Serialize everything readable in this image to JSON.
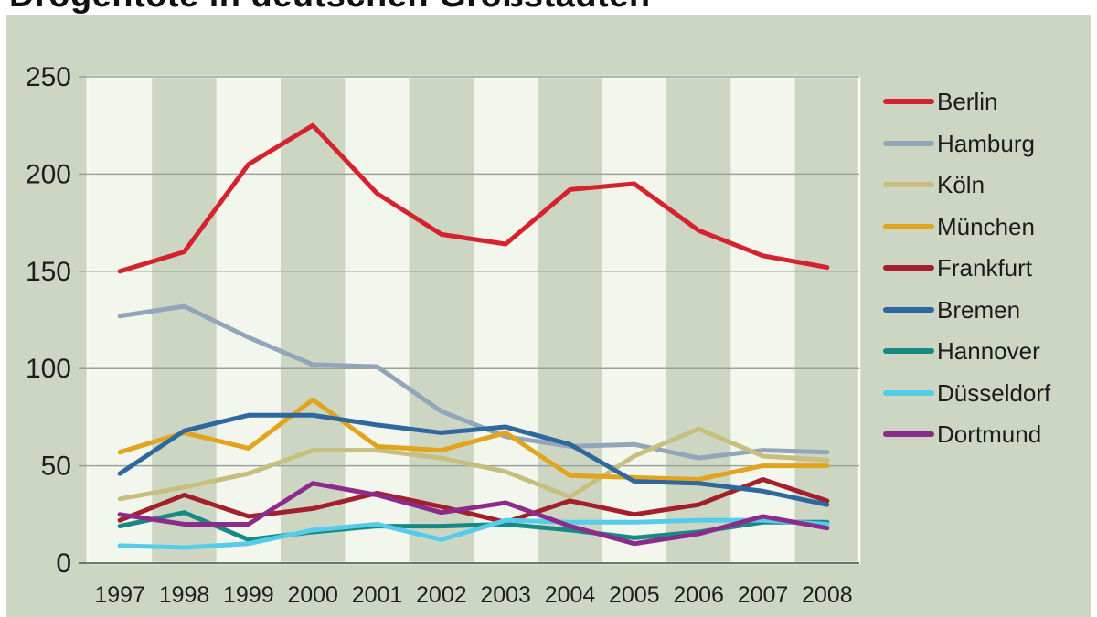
{
  "title": "Drogentote in deutschen Großstädten",
  "colors": {
    "page_bg": "#ffffff",
    "chart_bg": "#ccd6c3",
    "band_light": "#f3f6ed",
    "band_dark": "#ccd6c3",
    "plot_border": "#fafcf5",
    "grid": "#9aa29a",
    "axis": "#70766f",
    "text": "#1e1e1e"
  },
  "chart_data": {
    "type": "line",
    "title": "Drogentote in deutschen Großstädten",
    "x": [
      1997,
      1998,
      1999,
      2000,
      2001,
      2002,
      2003,
      2004,
      2005,
      2006,
      2007,
      2008
    ],
    "xlabel": "",
    "ylabel": "",
    "ylim": [
      0,
      250
    ],
    "yticks": [
      0,
      50,
      100,
      150,
      200,
      250
    ],
    "grid": "horizontal",
    "background_bands": "alternating vertical year columns",
    "legend_position": "right",
    "series": [
      {
        "name": "Berlin",
        "color": "#d5222d",
        "values": [
          150,
          160,
          205,
          225,
          190,
          169,
          164,
          192,
          195,
          171,
          158,
          152
        ]
      },
      {
        "name": "Hamburg",
        "color": "#92a5bb",
        "values": [
          127,
          132,
          116,
          102,
          101,
          78,
          65,
          60,
          61,
          54,
          58,
          57
        ]
      },
      {
        "name": "Köln",
        "color": "#c6bf80",
        "values": [
          33,
          39,
          46,
          58,
          58,
          54,
          47,
          34,
          55,
          69,
          55,
          53
        ]
      },
      {
        "name": "München",
        "color": "#e2a41c",
        "values": [
          57,
          67,
          59,
          84,
          60,
          58,
          67,
          45,
          44,
          43,
          50,
          50
        ]
      },
      {
        "name": "Frankfurt",
        "color": "#a31f2c",
        "values": [
          22,
          35,
          24,
          28,
          36,
          29,
          21,
          32,
          25,
          30,
          43,
          32
        ]
      },
      {
        "name": "Bremen",
        "color": "#2f689f",
        "values": [
          46,
          68,
          76,
          76,
          71,
          67,
          70,
          61,
          42,
          41,
          37,
          30
        ]
      },
      {
        "name": "Hannover",
        "color": "#178a84",
        "values": [
          19,
          26,
          12,
          16,
          19,
          19,
          20,
          17,
          13,
          16,
          21,
          21
        ]
      },
      {
        "name": "Düsseldorf",
        "color": "#55cdea",
        "values": [
          9,
          8,
          10,
          17,
          20,
          12,
          22,
          21,
          21,
          22,
          22,
          20
        ]
      },
      {
        "name": "Dortmund",
        "color": "#8c2c8a",
        "values": [
          25,
          20,
          20,
          41,
          35,
          26,
          31,
          19,
          10,
          15,
          24,
          18
        ]
      }
    ]
  }
}
